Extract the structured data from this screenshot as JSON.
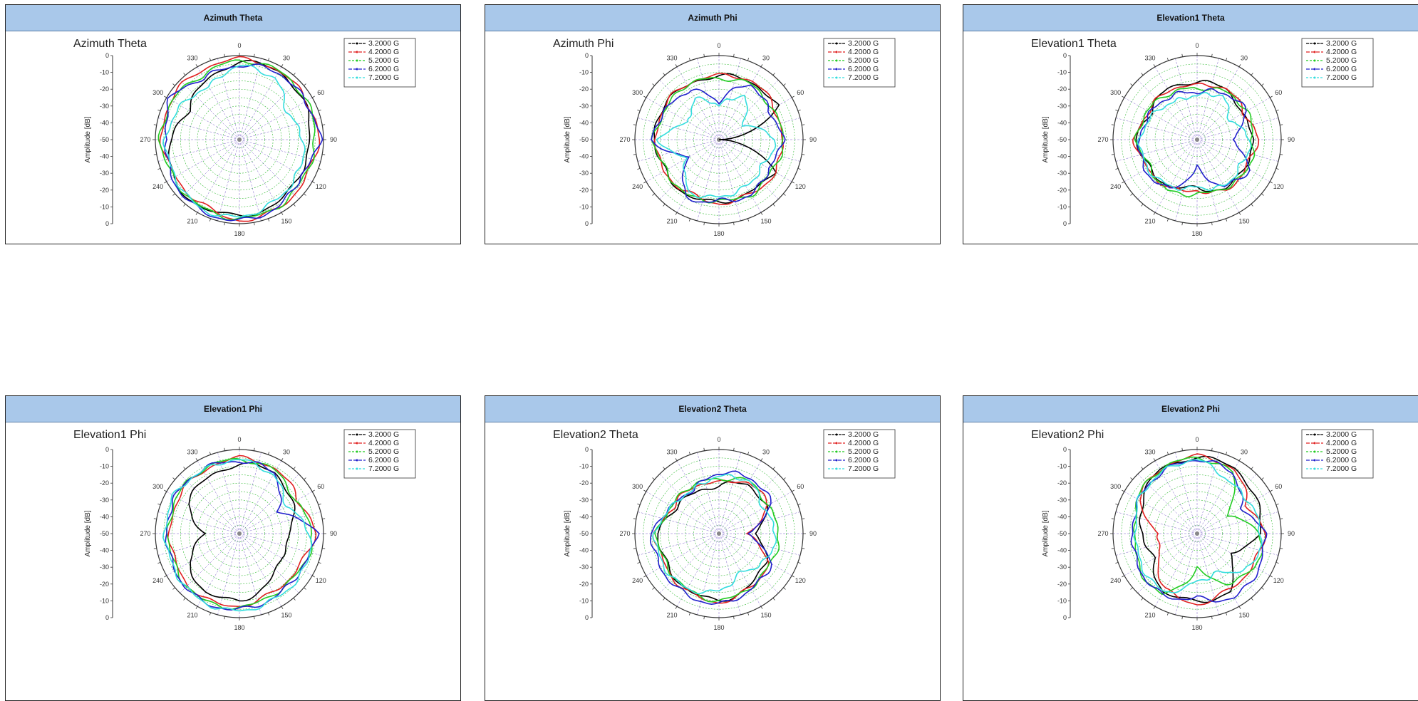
{
  "panels": [
    {
      "header": "Azimuth  Theta",
      "title": "Azimuth Theta"
    },
    {
      "header": "Azimuth  Phi",
      "title": "Azimuth Phi"
    },
    {
      "header": "Elevation1  Theta",
      "title": "Elevation1 Theta"
    },
    {
      "header": "Elevation1  Phi",
      "title": "Elevation1 Phi"
    },
    {
      "header": "Elevation2  Theta",
      "title": "Elevation2 Theta"
    },
    {
      "header": "Elevation2  Phi",
      "title": "Elevation2 Phi"
    }
  ],
  "chart_data": [
    {
      "type": "line",
      "title": "Azimuth Theta",
      "ylabel": "Amplitude [dB]",
      "angle_ticks": [
        0,
        30,
        60,
        90,
        120,
        150,
        180,
        210,
        240,
        270,
        300,
        330
      ],
      "radial_tick_labels": [
        "0",
        "-10",
        "-20",
        "-30",
        "-40",
        "-50"
      ],
      "rlim": [
        -50,
        0
      ],
      "grid": true,
      "legend": "top-right",
      "theta": [
        0,
        30,
        60,
        90,
        120,
        150,
        180,
        210,
        240,
        270,
        300,
        330
      ],
      "series": [
        {
          "name": "3.2000 G",
          "color": "#000000",
          "values": [
            -4,
            -3,
            -6,
            -8,
            -9,
            -6,
            -5,
            -4,
            -4,
            -10,
            -15,
            -10
          ]
        },
        {
          "name": "4.2000 G",
          "color": "#e02020",
          "values": [
            -2,
            -3,
            -4,
            -3,
            -5,
            -3,
            -2,
            -6,
            -6,
            -4,
            -3,
            -3
          ]
        },
        {
          "name": "5.2000 G",
          "color": "#22cc22",
          "values": [
            -3,
            -3,
            -4,
            -5,
            -6,
            -4,
            -3,
            -4,
            -5,
            -3,
            -4,
            -6
          ]
        },
        {
          "name": "6.2000 G",
          "color": "#2020cc",
          "values": [
            -6,
            -4,
            -5,
            -2,
            -8,
            -4,
            -2,
            -2,
            -4,
            -7,
            -2,
            -8
          ]
        },
        {
          "name": "7.2000 G",
          "color": "#33dddd",
          "values": [
            -6,
            -8,
            -18,
            -12,
            -10,
            -8,
            -4,
            -3,
            -6,
            -6,
            -10,
            -14
          ]
        }
      ]
    },
    {
      "type": "line",
      "title": "Azimuth Phi",
      "ylabel": "Amplitude [dB]",
      "angle_ticks": [
        0,
        30,
        60,
        90,
        120,
        150,
        180,
        210,
        240,
        270,
        300,
        330
      ],
      "radial_tick_labels": [
        "0",
        "-10",
        "-20",
        "-30",
        "-40",
        "-50"
      ],
      "rlim": [
        -50,
        0
      ],
      "grid": true,
      "legend": "top-right",
      "theta": [
        0,
        30,
        60,
        90,
        120,
        150,
        180,
        210,
        240,
        270,
        300,
        330
      ],
      "series": [
        {
          "name": "3.2000 G",
          "color": "#000000",
          "values": [
            -12,
            -11,
            -10,
            -50,
            -12,
            -14,
            -13,
            -12,
            -13,
            -12,
            -11,
            -13
          ]
        },
        {
          "name": "4.2000 G",
          "color": "#e02020",
          "values": [
            -12,
            -10,
            -12,
            -13,
            -11,
            -13,
            -12,
            -14,
            -12,
            -13,
            -12,
            -12
          ]
        },
        {
          "name": "5.2000 G",
          "color": "#22cc22",
          "values": [
            -14,
            -12,
            -14,
            -11,
            -14,
            -12,
            -14,
            -12,
            -14,
            -11,
            -14,
            -12
          ]
        },
        {
          "name": "6.2000 G",
          "color": "#2020cc",
          "values": [
            -28,
            -12,
            -16,
            -12,
            -16,
            -12,
            -14,
            -10,
            -30,
            -10,
            -14,
            -16
          ]
        },
        {
          "name": "7.2000 G",
          "color": "#33dddd",
          "values": [
            -30,
            -20,
            -34,
            -16,
            -20,
            -18,
            -16,
            -14,
            -28,
            -14,
            -30,
            -22
          ]
        }
      ]
    },
    {
      "type": "line",
      "title": "Elevation1 Theta",
      "ylabel": "Amplitude [dB]",
      "angle_ticks": [
        0,
        30,
        60,
        90,
        120,
        150,
        180,
        210,
        240,
        270,
        300,
        330
      ],
      "radial_tick_labels": [
        "0",
        "-10",
        "-20",
        "-30",
        "-40",
        "-50"
      ],
      "rlim": [
        -50,
        0
      ],
      "grid": true,
      "legend": "top-right",
      "theta": [
        0,
        30,
        60,
        90,
        120,
        150,
        180,
        210,
        240,
        270,
        300,
        330
      ],
      "series": [
        {
          "name": "3.2000 G",
          "color": "#000000",
          "values": [
            -16,
            -15,
            -20,
            -16,
            -18,
            -16,
            -22,
            -18,
            -17,
            -14,
            -18,
            -15
          ]
        },
        {
          "name": "4.2000 G",
          "color": "#e02020",
          "values": [
            -18,
            -15,
            -18,
            -14,
            -17,
            -15,
            -20,
            -17,
            -16,
            -13,
            -17,
            -16
          ]
        },
        {
          "name": "5.2000 G",
          "color": "#22cc22",
          "values": [
            -20,
            -17,
            -16,
            -17,
            -15,
            -17,
            -18,
            -15,
            -18,
            -14,
            -16,
            -18
          ]
        },
        {
          "name": "6.2000 G",
          "color": "#2020cc",
          "values": [
            -22,
            -18,
            -16,
            -30,
            -14,
            -18,
            -34,
            -16,
            -14,
            -16,
            -18,
            -20
          ]
        },
        {
          "name": "7.2000 G",
          "color": "#33dddd",
          "values": [
            -24,
            -20,
            -28,
            -18,
            -20,
            -18,
            -22,
            -18,
            -16,
            -16,
            -20,
            -24
          ]
        }
      ]
    },
    {
      "type": "line",
      "title": "Elevation1 Phi",
      "ylabel": "Amplitude [dB]",
      "angle_ticks": [
        0,
        30,
        60,
        90,
        120,
        150,
        180,
        210,
        240,
        270,
        300,
        330
      ],
      "radial_tick_labels": [
        "0",
        "-10",
        "-20",
        "-30",
        "-40",
        "-50"
      ],
      "rlim": [
        -50,
        0
      ],
      "grid": true,
      "legend": "top-right",
      "theta": [
        0,
        30,
        60,
        90,
        120,
        150,
        180,
        210,
        240,
        270,
        300,
        330
      ],
      "series": [
        {
          "name": "3.2000 G",
          "color": "#000000",
          "values": [
            -9,
            -8,
            -14,
            -20,
            -22,
            -16,
            -10,
            -10,
            -15,
            -30,
            -14,
            -12
          ]
        },
        {
          "name": "4.2000 G",
          "color": "#e02020",
          "values": [
            -5,
            -6,
            -10,
            -5,
            -10,
            -10,
            -7,
            -6,
            -8,
            -9,
            -8,
            -7
          ]
        },
        {
          "name": "5.2000 G",
          "color": "#22cc22",
          "values": [
            -6,
            -7,
            -12,
            -6,
            -8,
            -9,
            -6,
            -5,
            -7,
            -8,
            -7,
            -6
          ]
        },
        {
          "name": "6.2000 G",
          "color": "#2020cc",
          "values": [
            -7,
            -8,
            -24,
            -4,
            -8,
            -7,
            -5,
            -4,
            -6,
            -7,
            -6,
            -6
          ]
        },
        {
          "name": "7.2000 G",
          "color": "#33dddd",
          "values": [
            -6,
            -10,
            -18,
            -8,
            -6,
            -6,
            -4,
            -4,
            -6,
            -6,
            -5,
            -7
          ]
        }
      ]
    },
    {
      "type": "line",
      "title": "Elevation2 Theta",
      "ylabel": "Amplitude [dB]",
      "angle_ticks": [
        0,
        30,
        60,
        90,
        120,
        150,
        180,
        210,
        240,
        270,
        300,
        330
      ],
      "radial_tick_labels": [
        "0",
        "-10",
        "-20",
        "-30",
        "-40",
        "-50"
      ],
      "rlim": [
        -50,
        0
      ],
      "grid": true,
      "legend": "top-right",
      "theta": [
        0,
        30,
        60,
        90,
        120,
        150,
        180,
        210,
        240,
        270,
        300,
        330
      ],
      "series": [
        {
          "name": "3.2000 G",
          "color": "#000000",
          "values": [
            -22,
            -16,
            -18,
            -28,
            -18,
            -14,
            -10,
            -12,
            -14,
            -14,
            -20,
            -22
          ]
        },
        {
          "name": "4.2000 G",
          "color": "#e02020",
          "values": [
            -20,
            -15,
            -16,
            -34,
            -16,
            -13,
            -9,
            -11,
            -13,
            -12,
            -19,
            -18
          ]
        },
        {
          "name": "5.2000 G",
          "color": "#22cc22",
          "values": [
            -18,
            -14,
            -17,
            -14,
            -15,
            -13,
            -10,
            -12,
            -14,
            -13,
            -18,
            -17
          ]
        },
        {
          "name": "6.2000 G",
          "color": "#2020cc",
          "values": [
            -14,
            -12,
            -14,
            -34,
            -14,
            -12,
            -8,
            -9,
            -10,
            -10,
            -18,
            -20
          ]
        },
        {
          "name": "7.2000 G",
          "color": "#33dddd",
          "values": [
            -16,
            -14,
            -20,
            -16,
            -18,
            -24,
            -16,
            -12,
            -12,
            -12,
            -18,
            -20
          ]
        }
      ]
    },
    {
      "type": "line",
      "title": "Elevation2 Phi",
      "ylabel": "Amplitude [dB]",
      "angle_ticks": [
        0,
        30,
        60,
        90,
        120,
        150,
        180,
        210,
        240,
        270,
        300,
        330
      ],
      "radial_tick_labels": [
        "0",
        "-10",
        "-20",
        "-30",
        "-40",
        "-50"
      ],
      "rlim": [
        -50,
        0
      ],
      "grid": true,
      "legend": "top-right",
      "theta": [
        0,
        30,
        60,
        90,
        120,
        150,
        180,
        210,
        240,
        270,
        300,
        330
      ],
      "series": [
        {
          "name": "3.2000 G",
          "color": "#000000",
          "values": [
            -5,
            -5,
            -10,
            -12,
            -28,
            -10,
            -10,
            -10,
            -20,
            -18,
            -12,
            -6
          ]
        },
        {
          "name": "4.2000 G",
          "color": "#e02020",
          "values": [
            -4,
            -6,
            -16,
            -10,
            -12,
            -12,
            -8,
            -12,
            -24,
            -28,
            -10,
            -6
          ]
        },
        {
          "name": "5.2000 G",
          "color": "#22cc22",
          "values": [
            -5,
            -8,
            -30,
            -12,
            -10,
            -16,
            -30,
            -8,
            -10,
            -14,
            -9,
            -6
          ]
        },
        {
          "name": "6.2000 G",
          "color": "#2020cc",
          "values": [
            -6,
            -8,
            -20,
            -10,
            -8,
            -6,
            -12,
            -8,
            -10,
            -12,
            -10,
            -8
          ]
        },
        {
          "name": "7.2000 G",
          "color": "#33dddd",
          "values": [
            -6,
            -14,
            -14,
            -12,
            -12,
            -24,
            -22,
            -10,
            -12,
            -14,
            -10,
            -8
          ]
        }
      ]
    }
  ]
}
